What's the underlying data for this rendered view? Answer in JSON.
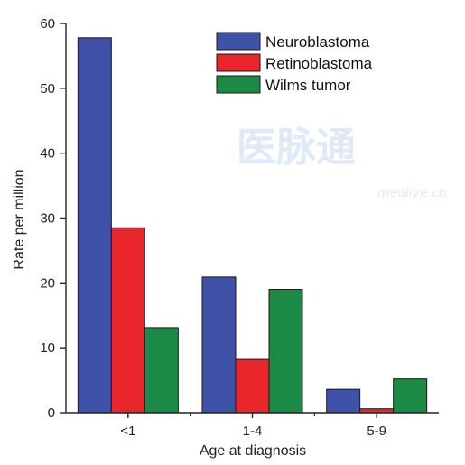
{
  "chart_data": {
    "type": "bar",
    "title": "",
    "xlabel": "Age at diagnosis",
    "ylabel": "Rate per million",
    "ylim": [
      0,
      60
    ],
    "yticks": [
      "0",
      "10",
      "20",
      "30",
      "40",
      "50",
      "60"
    ],
    "categories": [
      "<1",
      "1-4",
      "5-9"
    ],
    "series": [
      {
        "name": "Neuroblastoma",
        "color": "#3f51a8",
        "values": [
          57.8,
          20.9,
          3.6
        ]
      },
      {
        "name": "Retinoblastoma",
        "color": "#e8262b",
        "values": [
          28.5,
          8.2,
          0.6
        ]
      },
      {
        "name": "Wilms tumor",
        "color": "#1b8a47",
        "values": [
          13.1,
          19.0,
          5.2
        ]
      }
    ],
    "legend_position": "top-right",
    "grid": false
  },
  "watermark": {
    "text": "医脉通",
    "url": "medlive.cn"
  }
}
